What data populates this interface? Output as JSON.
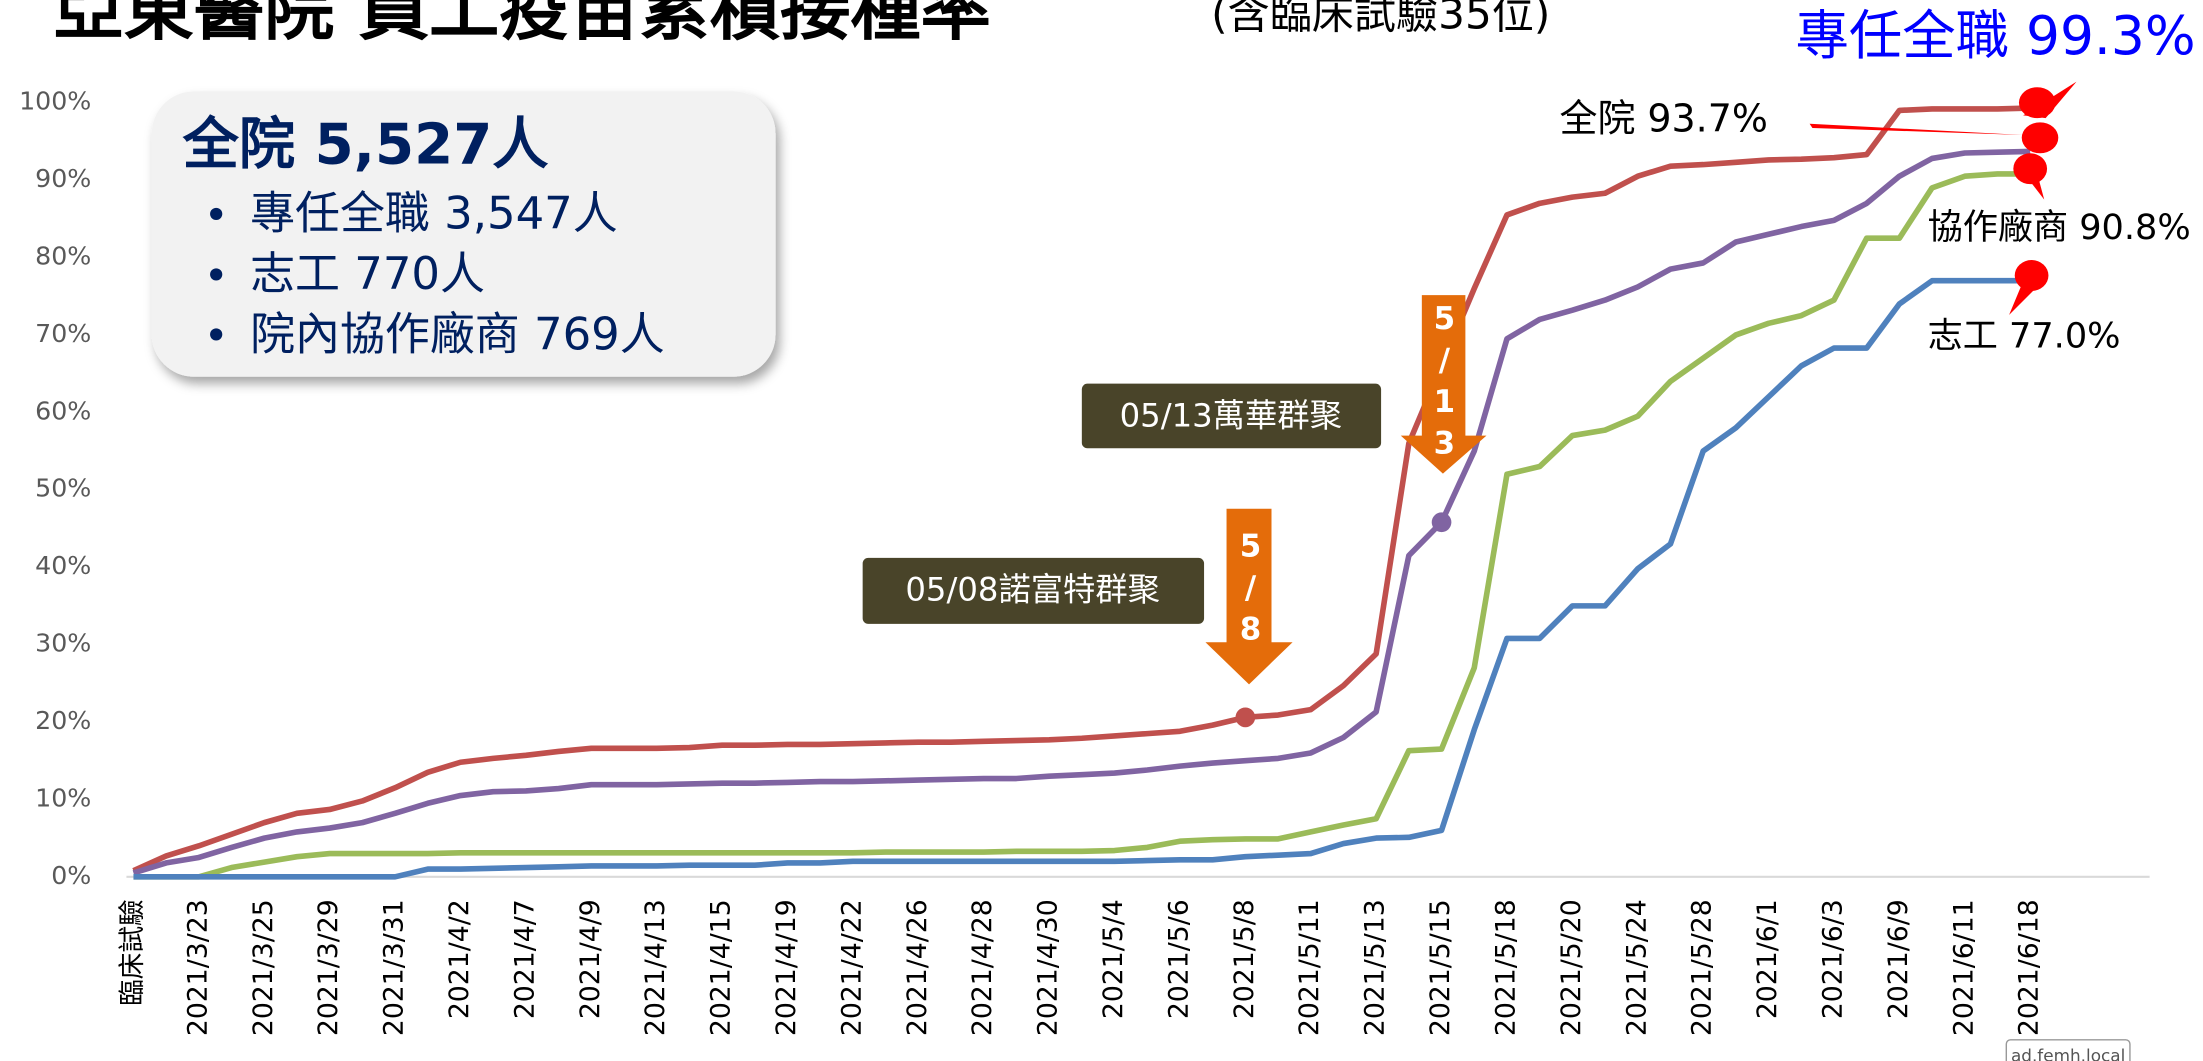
{
  "chart_data": {
    "type": "line",
    "title": "亞東醫院 員工疫苗累積接種率",
    "subtitle": "(含臨床試驗35位)",
    "headline": "專任全職 99.3%",
    "categories": [
      "臨床試驗",
      null,
      "2021/3/23",
      null,
      "2021/3/25",
      null,
      "2021/3/29",
      null,
      "2021/3/31",
      null,
      "2021/4/2",
      null,
      "2021/4/7",
      null,
      "2021/4/9",
      null,
      "2021/4/13",
      null,
      "2021/4/15",
      null,
      "2021/4/19",
      null,
      "2021/4/22",
      null,
      "2021/4/26",
      null,
      "2021/4/28",
      null,
      "2021/4/30",
      null,
      "2021/5/4",
      null,
      "2021/5/6",
      null,
      "2021/5/8",
      null,
      "2021/5/11",
      null,
      "2021/5/13",
      null,
      "2021/5/15",
      null,
      "2021/5/18",
      null,
      "2021/5/20",
      null,
      "2021/5/24",
      null,
      "2021/5/28",
      null,
      "2021/6/1",
      null,
      "2021/6/3",
      null,
      "2021/6/9",
      null,
      "2021/6/11",
      null,
      "2021/6/18"
    ],
    "series": [
      {
        "name": "專任全職",
        "color": "#c0504d",
        "values": [
          0.8,
          2.7,
          4.0,
          5.5,
          7.0,
          8.2,
          8.7,
          9.8,
          11.5,
          13.5,
          14.8,
          15.3,
          15.7,
          16.2,
          16.6,
          16.6,
          16.6,
          16.7,
          17.0,
          17.0,
          17.1,
          17.1,
          17.2,
          17.3,
          17.4,
          17.4,
          17.5,
          17.6,
          17.7,
          17.9,
          18.2,
          18.5,
          18.8,
          19.6,
          20.6,
          20.9,
          21.6,
          24.7,
          28.8,
          56.0,
          66.0,
          76.0,
          85.5,
          87.0,
          87.8,
          88.3,
          90.5,
          91.8,
          92.0,
          92.3,
          92.6,
          92.7,
          92.9,
          93.3,
          99.0,
          99.2,
          99.2,
          99.2,
          99.3
        ]
      },
      {
        "name": "全院",
        "color": "#8064a2",
        "values": [
          0.5,
          1.8,
          2.5,
          3.8,
          5.0,
          5.8,
          6.3,
          7.0,
          8.2,
          9.5,
          10.5,
          11.0,
          11.1,
          11.4,
          11.9,
          11.9,
          11.9,
          12.0,
          12.1,
          12.1,
          12.2,
          12.3,
          12.3,
          12.4,
          12.5,
          12.6,
          12.7,
          12.7,
          13.0,
          13.2,
          13.4,
          13.8,
          14.3,
          14.7,
          15.0,
          15.3,
          16.0,
          18.0,
          21.3,
          41.5,
          45.8,
          55.0,
          69.5,
          72.0,
          73.2,
          74.5,
          76.2,
          78.5,
          79.3,
          82.0,
          83.0,
          84.0,
          84.8,
          87.0,
          90.5,
          92.8,
          93.5,
          93.6,
          93.7
        ]
      },
      {
        "name": "協作廠商",
        "color": "#9bbb59",
        "values": [
          0,
          0,
          0,
          1.2,
          1.9,
          2.6,
          3.0,
          3.0,
          3.0,
          3.0,
          3.1,
          3.1,
          3.1,
          3.1,
          3.1,
          3.1,
          3.1,
          3.1,
          3.1,
          3.1,
          3.1,
          3.1,
          3.1,
          3.2,
          3.2,
          3.2,
          3.2,
          3.3,
          3.3,
          3.3,
          3.4,
          3.8,
          4.6,
          4.8,
          4.9,
          4.9,
          5.8,
          6.7,
          7.5,
          16.3,
          16.5,
          27.0,
          52.0,
          53.0,
          57.0,
          57.7,
          59.5,
          64.0,
          67.0,
          70.0,
          71.5,
          72.5,
          74.5,
          82.5,
          82.5,
          89.0,
          90.5,
          90.8,
          90.8
        ]
      },
      {
        "name": "志工",
        "color": "#4f81bd",
        "values": [
          0,
          0,
          0,
          0,
          0,
          0,
          0,
          0,
          0,
          1.0,
          1.0,
          1.1,
          1.2,
          1.3,
          1.4,
          1.4,
          1.4,
          1.5,
          1.5,
          1.5,
          1.8,
          1.8,
          2.0,
          2.0,
          2.0,
          2.0,
          2.0,
          2.0,
          2.0,
          2.0,
          2.0,
          2.1,
          2.2,
          2.2,
          2.6,
          2.8,
          3.0,
          4.3,
          5.0,
          5.1,
          6.0,
          19.0,
          30.8,
          30.8,
          35.0,
          35.0,
          39.8,
          43.0,
          55.0,
          58.0,
          62.0,
          66.0,
          68.3,
          68.3,
          74.0,
          77.0,
          77.0,
          77.0,
          77.0
        ]
      }
    ],
    "ylim": [
      0,
      100
    ],
    "yticks": [
      {
        "value": 0,
        "label": "0%"
      },
      {
        "value": 10,
        "label": "10%"
      },
      {
        "value": 20,
        "label": "20%"
      },
      {
        "value": 30,
        "label": "30%"
      },
      {
        "value": 40,
        "label": "40%"
      },
      {
        "value": 50,
        "label": "50%"
      },
      {
        "value": 60,
        "label": "60%"
      },
      {
        "value": 70,
        "label": "70%"
      },
      {
        "value": 80,
        "label": "80%"
      },
      {
        "value": 90,
        "label": "90%"
      },
      {
        "value": 100,
        "label": "100%"
      }
    ],
    "grid": false,
    "end_labels": [
      "全院 93.7%",
      "協作廠商 90.8%",
      "志工 77.0%"
    ],
    "info_box": {
      "title": "全院 5,527人",
      "items": [
        "專任全職 3,547人",
        "志工 770人",
        "院內協作廠商 769人"
      ]
    },
    "callouts": [
      "05/13萬華群聚",
      "05/08諾富特群聚"
    ],
    "arrow_labels": [
      "5/13",
      "5/8"
    ],
    "watermark": "ad.femh.local"
  }
}
